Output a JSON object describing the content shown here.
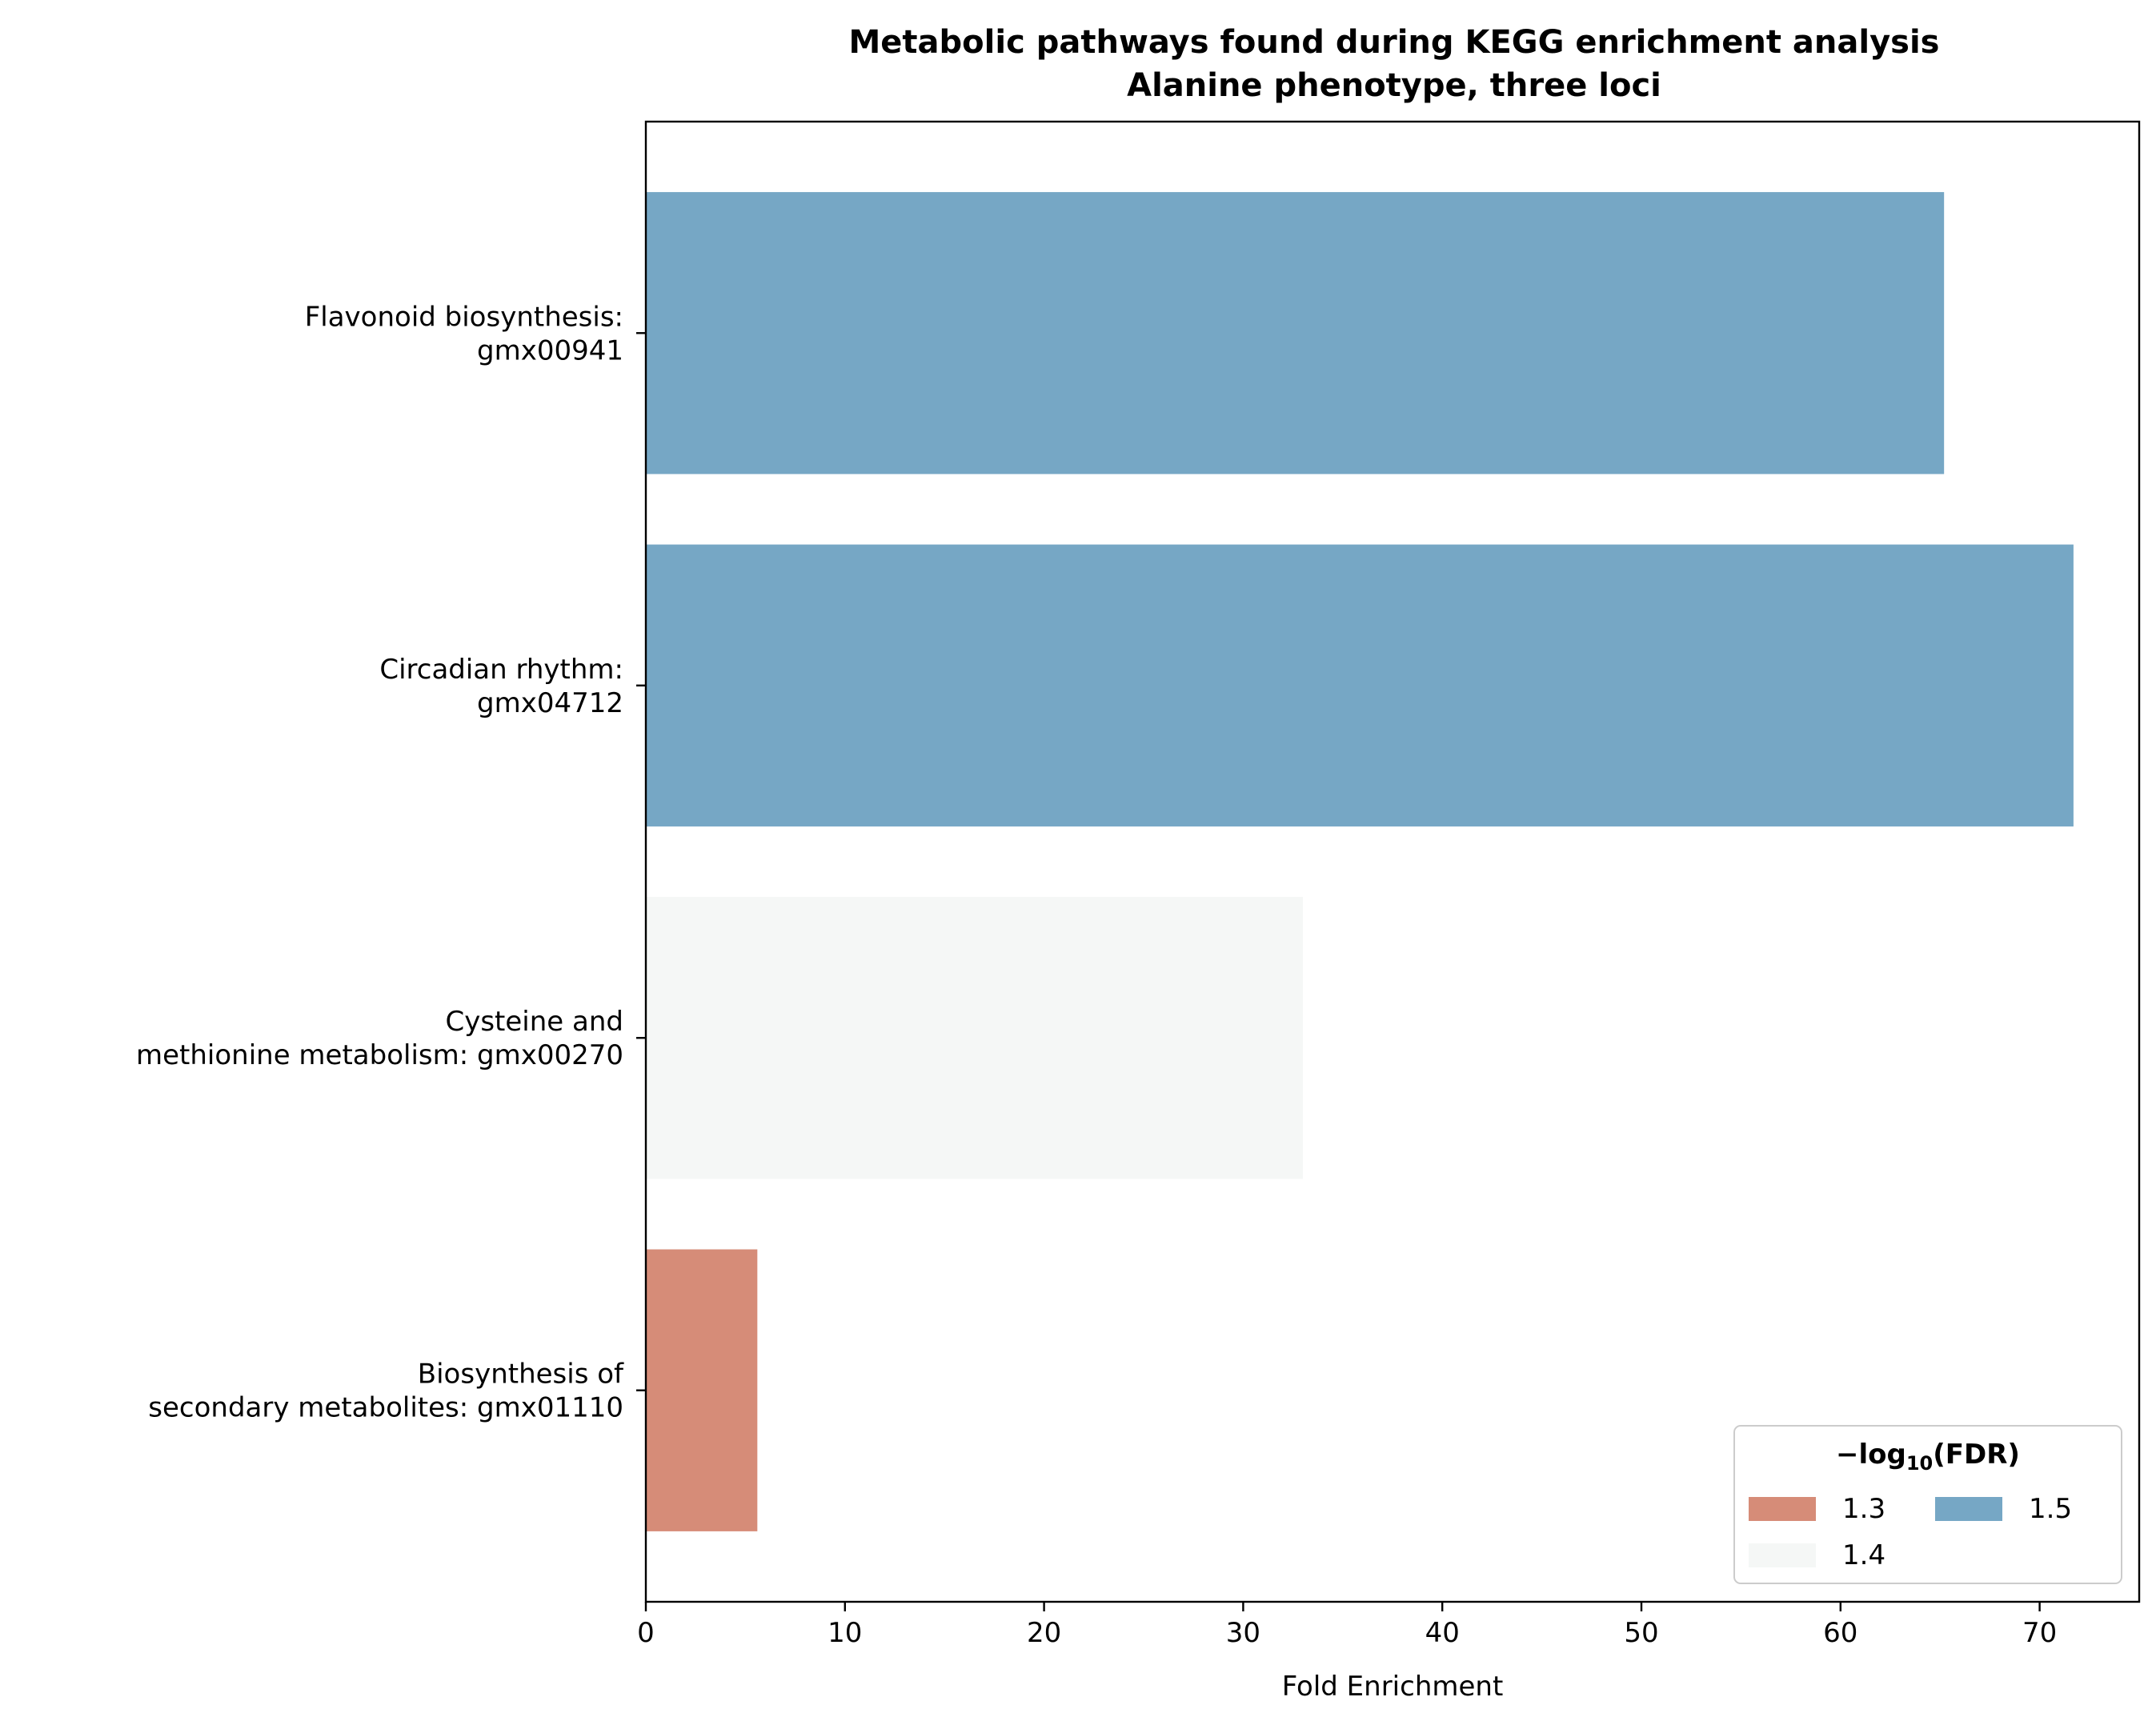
{
  "chart_data": {
    "type": "bar",
    "orientation": "horizontal",
    "title": [
      "Metabolic pathways found during KEGG enrichment analysis",
      "Alanine phenotype, three loci"
    ],
    "xlabel": "Fold Enrichment",
    "ylabel": "",
    "xlim": [
      0,
      75
    ],
    "x_ticks": [
      0,
      10,
      20,
      30,
      40,
      50,
      60,
      70
    ],
    "grid": false,
    "categories": [
      [
        "Flavonoid biosynthesis:",
        "gmx00941"
      ],
      [
        "Circadian rhythm:",
        "gmx04712"
      ],
      [
        "Cysteine and",
        "methionine metabolism: gmx00270"
      ],
      [
        "Biosynthesis of",
        "secondary metabolites: gmx01110"
      ]
    ],
    "values": [
      65.2,
      71.7,
      33.0,
      5.6
    ],
    "color_values": [
      "1.5",
      "1.5",
      "1.4",
      "1.3"
    ],
    "legend": {
      "title": "−log10(FDR)",
      "title_main": "−log",
      "title_sub": "10",
      "title_tail": "(FDR)",
      "placement": "lower-right",
      "ncol": 2,
      "entries": [
        {
          "label": "1.3",
          "color": "#d68c78"
        },
        {
          "label": "1.4",
          "color": "#f5f7f6"
        },
        {
          "label": "1.5",
          "color": "#76a7c5"
        }
      ]
    }
  }
}
